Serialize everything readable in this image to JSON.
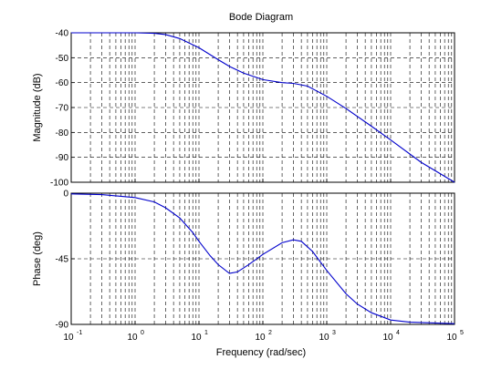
{
  "chart_data": {
    "type": "line",
    "title": "Bode Diagram",
    "xlabel": "Frequency  (rad/sec)",
    "xscale": "log",
    "xlim": [
      0.1,
      100000
    ],
    "x_ticks": [
      {
        "base": "10",
        "exp": "-1"
      },
      {
        "base": "10",
        "exp": "0"
      },
      {
        "base": "10",
        "exp": "1"
      },
      {
        "base": "10",
        "exp": "2"
      },
      {
        "base": "10",
        "exp": "3"
      },
      {
        "base": "10",
        "exp": "4"
      },
      {
        "base": "10",
        "exp": "5"
      }
    ],
    "grid": true,
    "line_color": "#0000cc",
    "subplots": [
      {
        "ylabel": "Magnitude (dB)",
        "ylim": [
          -100,
          -40
        ],
        "yticks": [
          "-40",
          "-50",
          "-60",
          "-70",
          "-80",
          "-90",
          "-100"
        ],
        "series": [
          {
            "x": [
              0.1,
              1,
              2,
              3,
              5,
              8,
              10,
              20,
              30,
              50,
              100,
              200,
              300,
              500,
              1000,
              2000,
              5000,
              10000,
              30000,
              100000
            ],
            "y": [
              -40,
              -40,
              -40.2,
              -40.7,
              -42.3,
              -44.8,
              -46,
              -50.8,
              -53.5,
              -56.2,
              -58.8,
              -60,
              -60.3,
              -61.4,
              -65.5,
              -70.4,
              -77.5,
              -83,
              -92,
              -100
            ]
          }
        ]
      },
      {
        "ylabel": "Phase (deg)",
        "ylim": [
          -90,
          0
        ],
        "yticks": [
          "0",
          "-45",
          "-90"
        ],
        "series": [
          {
            "x": [
              0.1,
              0.3,
              1,
              2,
              3,
              5,
              8,
              10,
              15,
              20,
              30,
              40,
              60,
              100,
              200,
              300,
              400,
              600,
              1000,
              2000,
              3000,
              5000,
              10000,
              20000,
              100000
            ],
            "y": [
              -0.5,
              -1,
              -3,
              -6,
              -10,
              -17,
              -27,
              -33,
              -43,
              -49,
              -55,
              -54,
              -49,
              -42,
              -34,
              -32,
              -33,
              -40,
              -53,
              -69,
              -76,
              -82,
              -87,
              -88.5,
              -89.5
            ]
          }
        ]
      }
    ]
  }
}
